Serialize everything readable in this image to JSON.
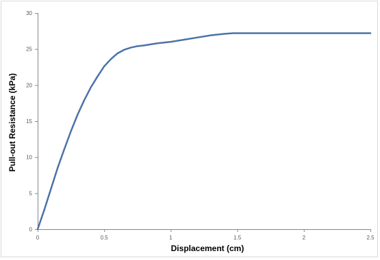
{
  "chart_data": {
    "type": "line",
    "xlabel": "Displacement (cm)",
    "ylabel": "Pull-out Resistance (kPa)",
    "xlim": [
      0,
      2.5
    ],
    "ylim": [
      0,
      30
    ],
    "x_ticks": [
      "0",
      "0.5",
      "1",
      "1.5",
      "2",
      "2.5"
    ],
    "y_ticks": [
      "0",
      "5",
      "10",
      "15",
      "20",
      "25",
      "30"
    ],
    "grid": false,
    "legend": "none",
    "series": [
      {
        "color": "#4a72a8",
        "x": [
          0,
          0.05,
          0.1,
          0.15,
          0.2,
          0.25,
          0.3,
          0.35,
          0.4,
          0.45,
          0.5,
          0.55,
          0.6,
          0.65,
          0.7,
          0.75,
          0.8,
          0.9,
          1.0,
          1.1,
          1.2,
          1.3,
          1.4,
          1.47,
          1.5,
          2.0,
          2.5
        ],
        "y": [
          0,
          2.7,
          5.6,
          8.5,
          11.1,
          13.6,
          15.9,
          17.9,
          19.7,
          21.2,
          22.6,
          23.6,
          24.4,
          24.9,
          25.2,
          25.4,
          25.5,
          25.8,
          26.0,
          26.3,
          26.6,
          26.9,
          27.1,
          27.2,
          27.2,
          27.2,
          27.2
        ]
      }
    ]
  }
}
